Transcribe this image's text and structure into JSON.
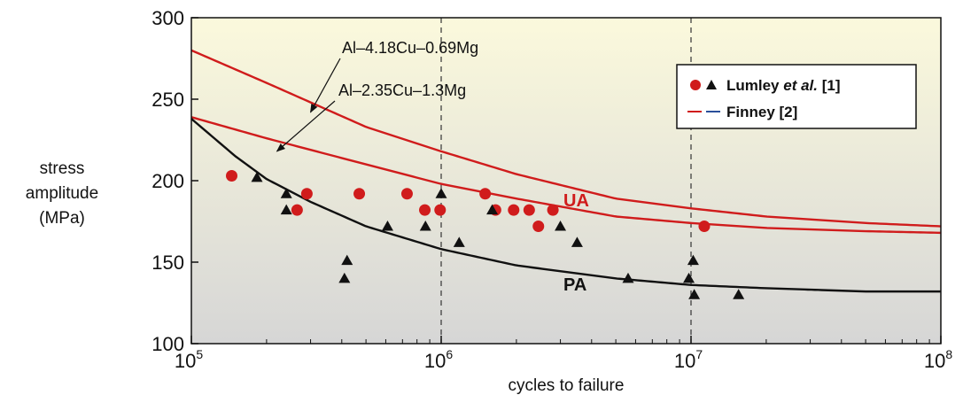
{
  "chart_data": {
    "type": "scatter",
    "xlabel": "cycles to failure",
    "ylabel": [
      "stress",
      "amplitude",
      "(MPa)"
    ],
    "xscale": "log",
    "xlim": [
      100000,
      100000000
    ],
    "ylim": [
      100,
      300
    ],
    "x_ticks": [
      {
        "value": 100000,
        "base": "10",
        "exp": "5"
      },
      {
        "value": 1000000,
        "base": "10",
        "exp": "6"
      },
      {
        "value": 10000000,
        "base": "10",
        "exp": "7"
      },
      {
        "value": 100000000,
        "base": "10",
        "exp": "8"
      }
    ],
    "y_ticks": [
      "100",
      "150",
      "200",
      "250",
      "300"
    ],
    "vertical_dashed_lines": [
      1000000,
      10000000
    ],
    "background_gradient": [
      "#fbf9dc",
      "#d6d6d6"
    ],
    "colors": {
      "red": "#d01c1c",
      "black": "#111111",
      "blue": "#2a4f9a"
    },
    "legend_position": "top-right",
    "legend": {
      "lumley_prefix": "Lumley ",
      "lumley_italic": "et al.",
      "lumley_suffix": " [1]",
      "finney": "Finney [2]"
    },
    "curve_labels": {
      "upper": "UA",
      "lower": "PA"
    },
    "annotations": [
      {
        "text": "Al–4.18Cu–0.69Mg",
        "target_x": 300000,
        "target_y": 242
      },
      {
        "text": "Al–2.35Cu–1.3Mg",
        "target_x": 220000,
        "target_y": 218
      }
    ],
    "series": [
      {
        "marker": "line",
        "color": "red",
        "x": [
          100000,
          200000,
          500000,
          1000000,
          2000000,
          5000000,
          10000000,
          20000000,
          50000000,
          100000000
        ],
        "y": [
          280,
          260,
          233,
          218,
          204,
          189,
          183,
          178,
          174,
          172
        ]
      },
      {
        "marker": "line",
        "color": "red",
        "x": [
          100000,
          200000,
          500000,
          1000000,
          2000000,
          5000000,
          10000000,
          20000000,
          50000000,
          100000000
        ],
        "y": [
          239,
          226,
          210,
          198,
          189,
          178,
          174,
          171,
          169,
          168
        ]
      },
      {
        "marker": "line",
        "color": "black",
        "x": [
          100000,
          150000,
          200000,
          300000,
          500000,
          1000000,
          2000000,
          5000000,
          10000000,
          20000000,
          50000000,
          100000000
        ],
        "y": [
          238,
          215,
          201,
          187,
          172,
          158,
          148,
          140,
          136,
          134,
          132,
          132
        ]
      },
      {
        "marker": "circle",
        "color": "red",
        "x": [
          145000,
          265000,
          290000,
          470000,
          730000,
          860000,
          990000,
          1500000,
          1650000,
          1950000,
          2250000,
          2450000,
          2800000,
          11300000
        ],
        "y": [
          203,
          182,
          192,
          192,
          192,
          182,
          182,
          192,
          182,
          182,
          182,
          172,
          182,
          172
        ]
      },
      {
        "marker": "triangle",
        "color": "black",
        "x": [
          183000,
          240000,
          240000,
          410000,
          420000,
          610000,
          865000,
          1000000,
          1180000,
          1600000,
          3000000,
          3500000,
          5600000,
          9800000,
          10200000,
          10300000,
          15500000
        ],
        "y": [
          202,
          192,
          182,
          140,
          151,
          172,
          172,
          192,
          162,
          182,
          172,
          162,
          140,
          140,
          151,
          130,
          130
        ]
      }
    ]
  }
}
